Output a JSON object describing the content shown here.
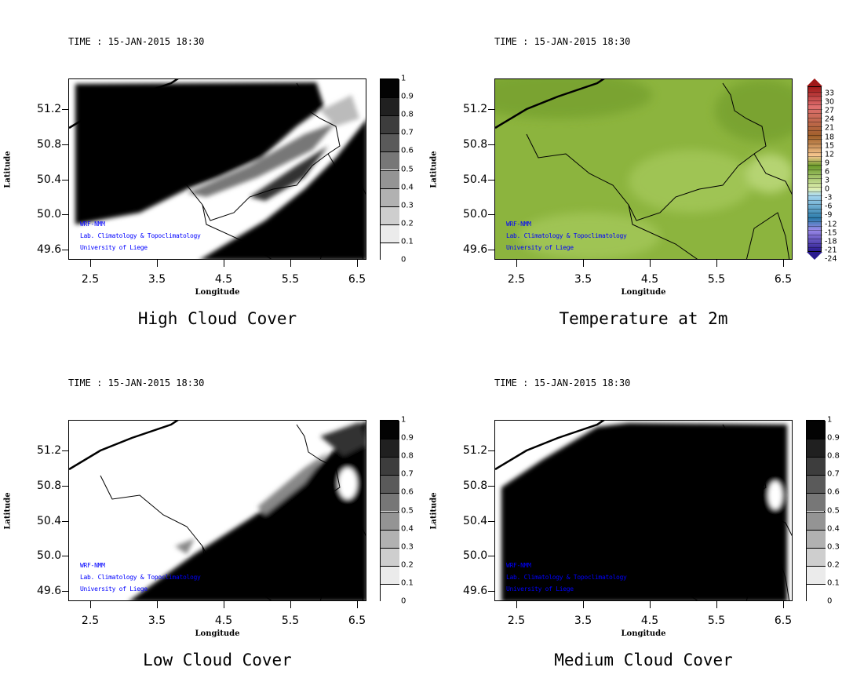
{
  "panels": [
    {
      "id": "high",
      "time": "TIME : 15-JAN-2015 18:30",
      "title": "High Cloud Cover",
      "type": "cloud"
    },
    {
      "id": "temp",
      "time": "TIME : 15-JAN-2015 18:30",
      "title": "Temperature at 2m",
      "type": "temp"
    },
    {
      "id": "low",
      "time": "TIME : 15-JAN-2015 18:30",
      "title": "Low Cloud Cover",
      "type": "cloud"
    },
    {
      "id": "medium",
      "time": "TIME : 15-JAN-2015 18:30",
      "title": "Medium Cloud Cover",
      "type": "cloud"
    }
  ],
  "axes": {
    "xlabel": "Longitude",
    "ylabel": "Latitude",
    "xticks": [
      "2.5",
      "3.5",
      "4.5",
      "5.5",
      "6.5"
    ],
    "yticks": [
      "51.2",
      "50.8",
      "50.4",
      "50.0",
      "49.6"
    ],
    "lon_range": [
      2.17,
      6.64
    ],
    "lat_range": [
      49.48,
      51.55
    ]
  },
  "watermark": [
    "WRF-NMM",
    "Lab. Climatology & Topoclimatology",
    "University of Liege"
  ],
  "cloud_colorbar": {
    "labels": [
      "0",
      "0.1",
      "0.2",
      "0.3",
      "0.4",
      "0.5",
      "0.6",
      "0.7",
      "0.8",
      "0.9",
      "1"
    ]
  },
  "temp_colorbar": {
    "labels": [
      "33",
      "30",
      "27",
      "24",
      "21",
      "18",
      "15",
      "12",
      "9",
      "6",
      "3",
      "0",
      "-3",
      "-6",
      "-9",
      "-12",
      "-15",
      "-18",
      "-21",
      "-24"
    ],
    "colors": {
      "top": "#a01818",
      "warm": "#e07070",
      "brown": "#a0602a",
      "peach": "#f8c890",
      "green": "#6a9a2a",
      "lightgreen": "#e0f0b0",
      "lightblue": "#a8d8f0",
      "blue": "#2a7aaa",
      "violet": "#9a8ae8",
      "navy": "#2a1a90"
    }
  },
  "colors": {
    "temp_field": "#8cb43e",
    "temp_field_light": "#a4c85a",
    "watermark": "#0000ff"
  }
}
